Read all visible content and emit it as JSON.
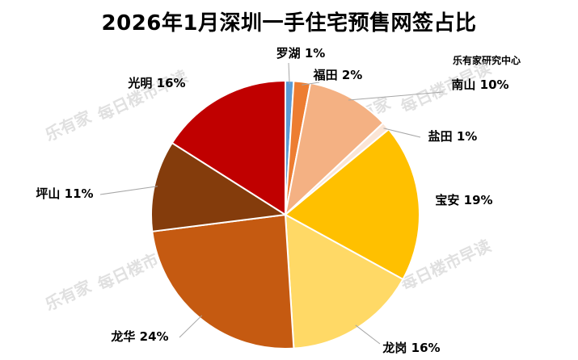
{
  "chart_data": {
    "type": "pie",
    "title": "2026年1月深圳一手住宅预售网签占比",
    "note": "乐有家研究中心",
    "watermark": [
      "乐有家",
      "每日楼市早读"
    ],
    "slices": [
      {
        "label": "罗湖 1%",
        "value": 1,
        "color": "#5b9bd5"
      },
      {
        "label": "福田 2%",
        "value": 2,
        "color": "#ed7d31"
      },
      {
        "label": "南山 10%",
        "value": 10,
        "color": "#f4b183"
      },
      {
        "label": "盐田 1%",
        "value": 1,
        "color": "#fbe5d6"
      },
      {
        "label": "宝安 19%",
        "value": 19,
        "color": "#ffc000"
      },
      {
        "label": "龙岗 16%",
        "value": 16,
        "color": "#ffd966"
      },
      {
        "label": "龙华 24%",
        "value": 24,
        "color": "#c55a11"
      },
      {
        "label": "坪山 11%",
        "value": 11,
        "color": "#843c0c"
      },
      {
        "label": "光明 16%",
        "value": 16,
        "color": "#c00000"
      }
    ]
  }
}
